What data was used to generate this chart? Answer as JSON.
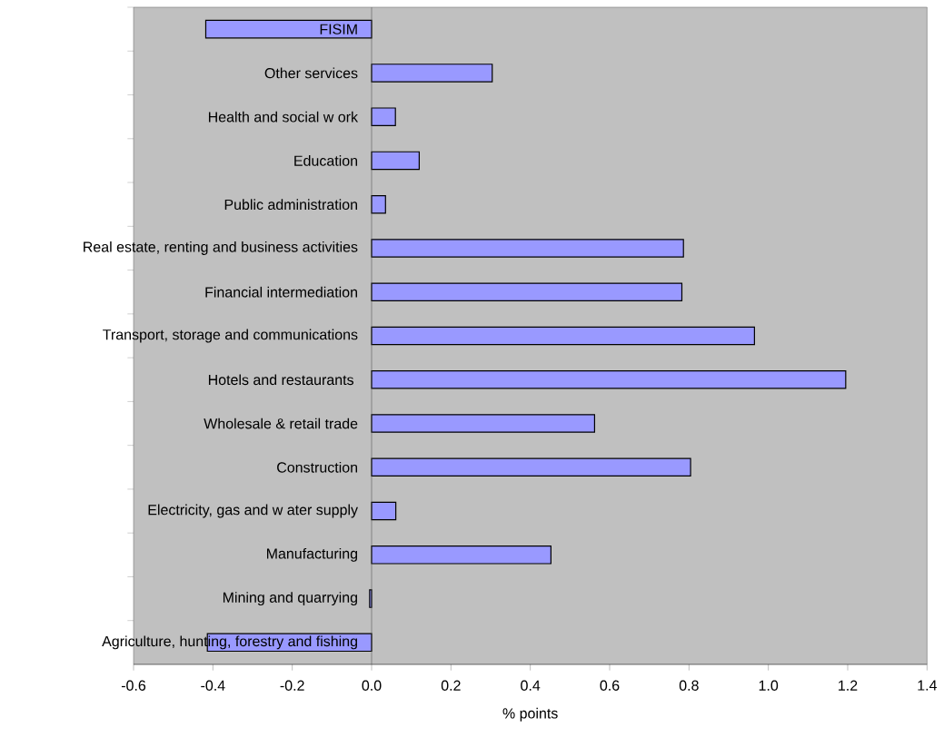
{
  "chart_data": {
    "type": "bar",
    "orientation": "horizontal",
    "xlabel": "% points",
    "categories": [
      "FISIM",
      "Other  services",
      "Health and social w ork",
      "Education",
      "Public administration",
      "Real estate, renting and business activities",
      "Financial intermediation",
      "Transport, storage and communications",
      "Hotels and restaurants ",
      "Wholesale & retail trade",
      "Construction",
      "Electricity, gas  and  w ater supply",
      "Manufacturing",
      "Mining and quarrying",
      "Agriculture, hunting, forestry and fishing"
    ],
    "values": [
      -0.418,
      0.304,
      0.06,
      0.12,
      0.035,
      0.786,
      0.782,
      0.965,
      1.195,
      0.562,
      0.804,
      0.061,
      0.452,
      -0.005,
      -0.414
    ],
    "color": "#9999ff",
    "xlim": [
      -0.6,
      1.4
    ],
    "xticks": [
      -0.6,
      -0.4,
      -0.2,
      {
        "value": 0,
        "label": "0.0"
      },
      0.2,
      0.4,
      0.6,
      0.8,
      {
        "value": 1,
        "label": "1.0"
      },
      1.2,
      1.4
    ]
  }
}
